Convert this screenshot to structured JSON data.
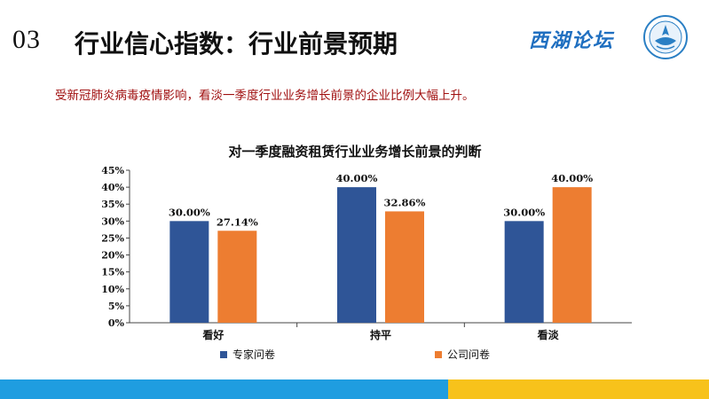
{
  "header": {
    "number": "03",
    "title": "行业信心指数：行业前景预期",
    "brand": "西湖论坛"
  },
  "subtitle": "受新冠肺炎病毒疫情影响，看淡一季度行业业务增长前景的企业比例大幅上升。",
  "colors": {
    "series_1": "#2f5597",
    "series_2": "#ed7d31",
    "footer_left": "#1f9de0",
    "footer_right": "#f7c21b",
    "subtitle": "#a01010"
  },
  "chart_data": {
    "type": "bar",
    "title": "对一季度融资租赁行业业务增长前景的判断",
    "categories": [
      "看好",
      "持平",
      "看淡"
    ],
    "series": [
      {
        "name": "专家问卷",
        "values": [
          30.0,
          40.0,
          30.0
        ],
        "labels": [
          "30.00%",
          "40.00%",
          "30.00%"
        ]
      },
      {
        "name": "公司问卷",
        "values": [
          27.14,
          32.86,
          40.0
        ],
        "labels": [
          "27.14%",
          "32.86%",
          "40.00%"
        ]
      }
    ],
    "ylim": [
      0,
      45
    ],
    "yticks": [
      "0%",
      "5%",
      "10%",
      "15%",
      "20%",
      "25%",
      "30%",
      "35%",
      "40%",
      "45%"
    ],
    "xlabel": "",
    "ylabel": "",
    "grid": false,
    "legend_position": "bottom"
  }
}
